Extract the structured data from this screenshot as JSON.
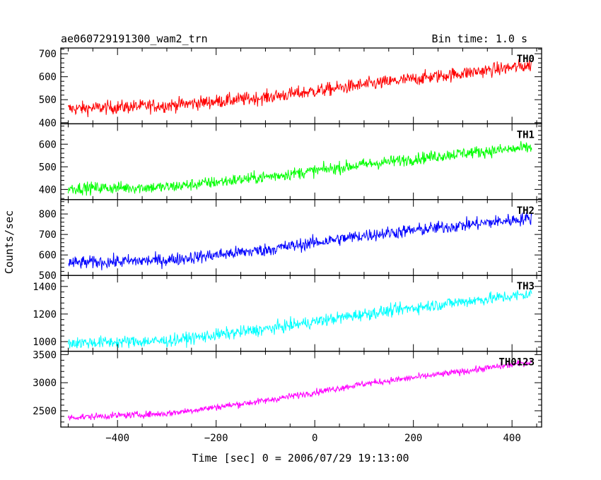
{
  "header": {
    "title": "ae060729191300_wam2_trn",
    "bin_time": "Bin time: 1.0 s"
  },
  "colors": {
    "TH0": "#ff0000",
    "TH1": "#00ff00",
    "TH2": "#0000ff",
    "TH3": "#00ffff",
    "TH0123": "#ff00ff"
  },
  "chart_data": {
    "type": "line",
    "title": "ae060729191300_wam2_trn",
    "subtitle": "Bin time: 1.0 s",
    "xlabel": "Time [sec] 0 = 2006/07/29 19:13:00",
    "ylabel": "Counts/sec",
    "xlim": [
      -515,
      460
    ],
    "xticks": [
      -400,
      -200,
      0,
      200,
      400
    ],
    "x_range_data": [
      -500,
      440
    ],
    "grid": false,
    "panels": [
      {
        "name": "TH0",
        "color": "#ff0000",
        "ylim": [
          395,
          725
        ],
        "yticks": [
          400,
          500,
          600,
          700
        ],
        "trend": {
          "x": [
            -500,
            -300,
            -100,
            100,
            300,
            440
          ],
          "y": [
            460,
            475,
            510,
            565,
            615,
            650
          ]
        },
        "noise_amplitude": 30
      },
      {
        "name": "TH1",
        "color": "#00ff00",
        "ylim": [
          355,
          690
        ],
        "yticks": [
          400,
          500,
          600
        ],
        "trend": {
          "x": [
            -500,
            -300,
            -100,
            100,
            300,
            440
          ],
          "y": [
            405,
            410,
            455,
            510,
            560,
            585
          ]
        },
        "noise_amplitude": 27
      },
      {
        "name": "TH2",
        "color": "#0000ff",
        "ylim": [
          500,
          870
        ],
        "yticks": [
          500,
          600,
          700,
          800
        ],
        "trend": {
          "x": [
            -500,
            -300,
            -100,
            100,
            300,
            440
          ],
          "y": [
            560,
            575,
            625,
            695,
            745,
            780
          ]
        },
        "noise_amplitude": 32
      },
      {
        "name": "TH3",
        "color": "#00ffff",
        "ylim": [
          930,
          1480
        ],
        "yticks": [
          1000,
          1200,
          1400
        ],
        "trend": {
          "x": [
            -500,
            -300,
            -100,
            100,
            300,
            440
          ],
          "y": [
            990,
            1005,
            1090,
            1200,
            1290,
            1345
          ]
        },
        "noise_amplitude": 45
      },
      {
        "name": "TH0123",
        "color": "#ff00ff",
        "ylim": [
          2210,
          3560
        ],
        "yticks": [
          2500,
          3000,
          3500
        ],
        "trend": {
          "x": [
            -500,
            -300,
            -100,
            100,
            300,
            440
          ],
          "y": [
            2380,
            2450,
            2680,
            2980,
            3200,
            3370
          ]
        },
        "noise_amplitude": 60
      }
    ]
  }
}
